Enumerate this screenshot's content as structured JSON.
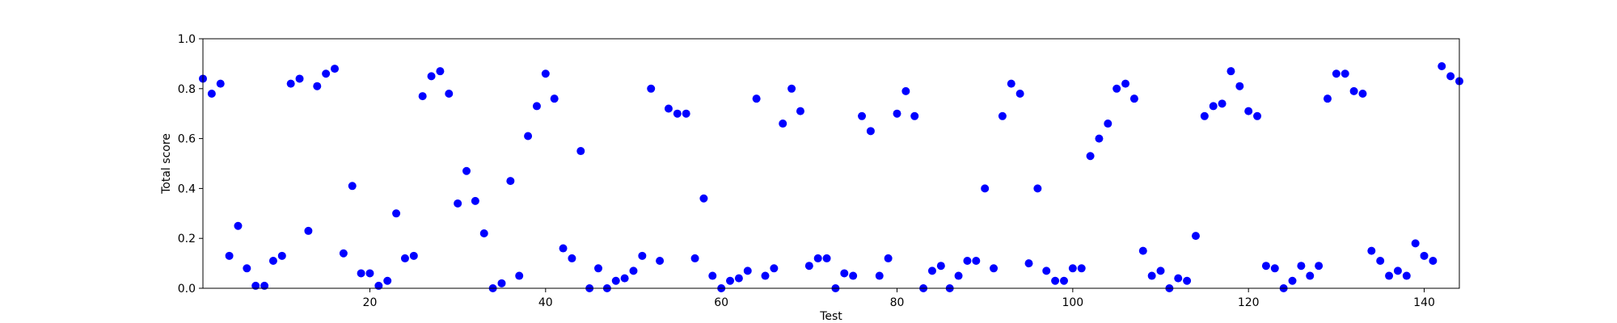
{
  "chart_data": {
    "type": "scatter",
    "xlabel": "Test",
    "ylabel": "Total score",
    "xlim": [
      1,
      144
    ],
    "ylim": [
      0.0,
      1.0
    ],
    "xticks": [
      20,
      40,
      60,
      80,
      100,
      120,
      140
    ],
    "xtick_labels": [
      "20",
      "40",
      "60",
      "80",
      "100",
      "120",
      "140"
    ],
    "yticks": [
      0.0,
      0.2,
      0.4,
      0.6,
      0.8,
      1.0
    ],
    "ytick_labels": [
      "0.0",
      "0.2",
      "0.4",
      "0.6",
      "0.8",
      "1.0"
    ],
    "grid": false,
    "series": [
      {
        "color": "#0000ff",
        "x": [
          1,
          2,
          3,
          4,
          5,
          6,
          7,
          8,
          9,
          10,
          11,
          12,
          13,
          14,
          15,
          16,
          17,
          18,
          19,
          20,
          21,
          22,
          23,
          24,
          25,
          26,
          27,
          28,
          29,
          30,
          31,
          32,
          33,
          34,
          35,
          36,
          37,
          38,
          39,
          40,
          41,
          42,
          43,
          44,
          45,
          46,
          47,
          48,
          49,
          50,
          51,
          52,
          53,
          54,
          55,
          56,
          57,
          58,
          59,
          60,
          61,
          62,
          63,
          64,
          65,
          66,
          67,
          68,
          69,
          70,
          71,
          72,
          73,
          74,
          75,
          76,
          77,
          78,
          79,
          80,
          81,
          82,
          83,
          84,
          85,
          86,
          87,
          88,
          89,
          90,
          91,
          92,
          93,
          94,
          95,
          96,
          97,
          98,
          99,
          100,
          101,
          102,
          103,
          104,
          105,
          106,
          107,
          108,
          109,
          110,
          111,
          112,
          113,
          114,
          115,
          116,
          117,
          118,
          119,
          120,
          121,
          122,
          123,
          124,
          125,
          126,
          127,
          128,
          129,
          130,
          131,
          132,
          133,
          134,
          135,
          136,
          137,
          138,
          139,
          140,
          141,
          142,
          143,
          144
        ],
        "y": [
          0.84,
          0.78,
          0.82,
          0.13,
          0.25,
          0.08,
          0.01,
          0.01,
          0.11,
          0.13,
          0.82,
          0.84,
          0.23,
          0.81,
          0.86,
          0.88,
          0.14,
          0.41,
          0.06,
          0.06,
          0.01,
          0.03,
          0.3,
          0.12,
          0.13,
          0.77,
          0.85,
          0.87,
          0.78,
          0.34,
          0.47,
          0.35,
          0.22,
          0.0,
          0.02,
          0.43,
          0.05,
          0.61,
          0.73,
          0.86,
          0.76,
          0.16,
          0.12,
          0.55,
          0.0,
          0.08,
          0.0,
          0.03,
          0.04,
          0.07,
          0.13,
          0.8,
          0.11,
          0.72,
          0.7,
          0.7,
          0.12,
          0.36,
          0.05,
          0.0,
          0.03,
          0.04,
          0.07,
          0.76,
          0.05,
          0.08,
          0.66,
          0.8,
          0.71,
          0.09,
          0.12,
          0.12,
          0.0,
          0.06,
          0.05,
          0.69,
          0.63,
          0.05,
          0.12,
          0.7,
          0.79,
          0.69,
          0.0,
          0.07,
          0.09,
          0.0,
          0.05,
          0.11,
          0.11,
          0.4,
          0.08,
          0.69,
          0.82,
          0.78,
          0.1,
          0.4,
          0.07,
          0.03,
          0.03,
          0.08,
          0.08,
          0.53,
          0.6,
          0.66,
          0.8,
          0.82,
          0.76,
          0.15,
          0.05,
          0.07,
          0.0,
          0.04,
          0.03,
          0.21,
          0.69,
          0.73,
          0.74,
          0.87,
          0.81,
          0.71,
          0.69,
          0.09,
          0.08,
          0.0,
          0.03,
          0.09,
          0.05,
          0.09,
          0.76,
          0.86,
          0.86,
          0.79,
          0.78,
          0.15,
          0.11,
          0.05,
          0.07,
          0.05,
          0.18,
          0.13,
          0.11,
          0.89,
          0.85,
          0.83
        ]
      }
    ]
  }
}
